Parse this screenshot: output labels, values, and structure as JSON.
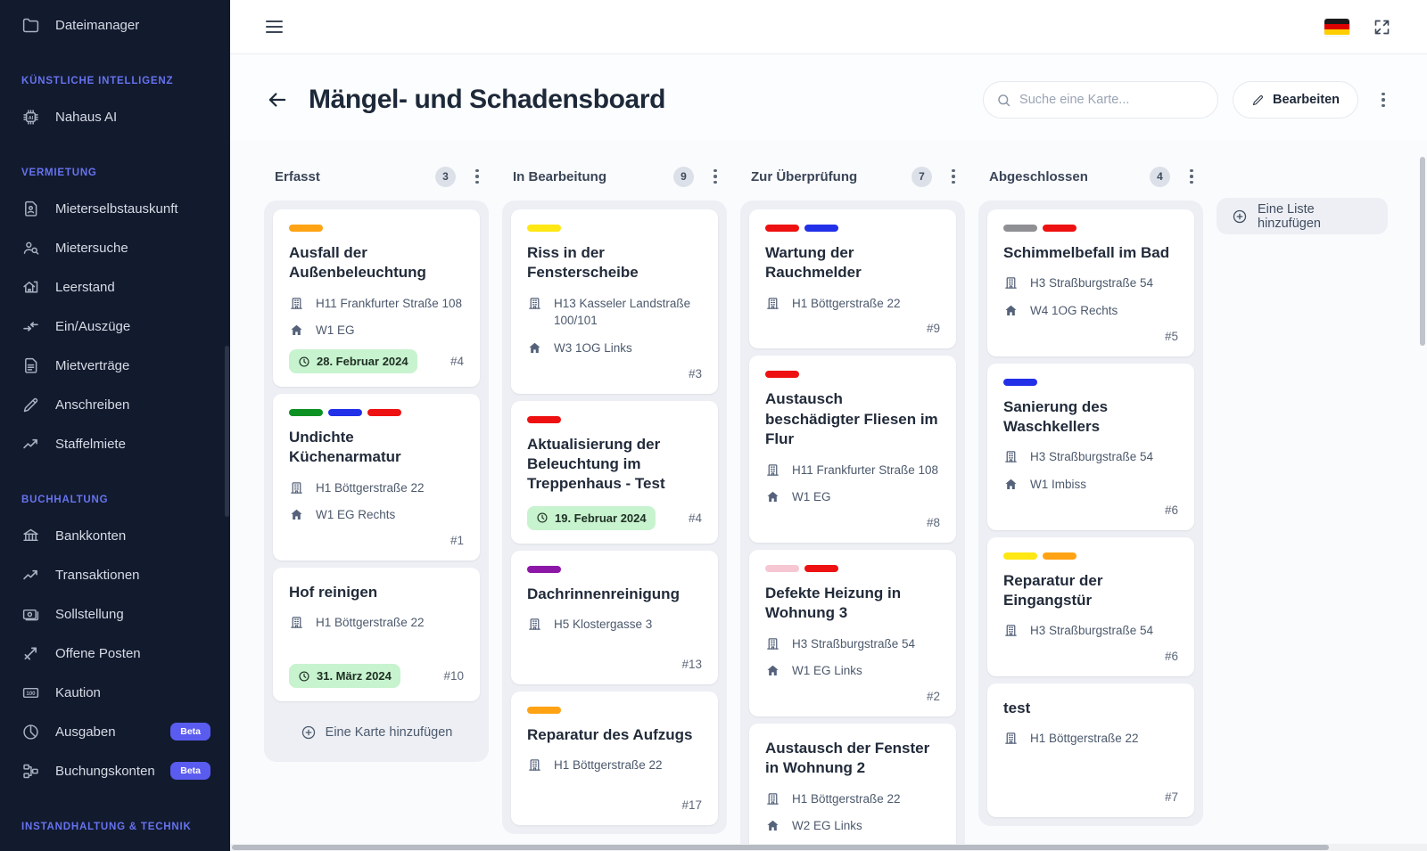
{
  "sidebar": {
    "top_item": {
      "label": "Dateimanager",
      "icon": "folder-icon"
    },
    "sections": [
      {
        "title": "KÜNSTLICHE INTELLIGENZ",
        "items": [
          {
            "label": "Nahaus AI",
            "icon": "ai-chip-icon"
          }
        ]
      },
      {
        "title": "VERMIETUNG",
        "items": [
          {
            "label": "Mieterselbstauskunft",
            "icon": "tenant-doc-icon"
          },
          {
            "label": "Mietersuche",
            "icon": "person-search-icon"
          },
          {
            "label": "Leerstand",
            "icon": "vacancy-house-icon"
          },
          {
            "label": "Ein/Auszüge",
            "icon": "move-arrows-icon"
          },
          {
            "label": "Mietverträge",
            "icon": "contract-icon"
          },
          {
            "label": "Anschreiben",
            "icon": "pen-icon"
          },
          {
            "label": "Staffelmiete",
            "icon": "trend-icon"
          }
        ]
      },
      {
        "title": "BUCHHALTUNG",
        "items": [
          {
            "label": "Bankkonten",
            "icon": "bank-icon"
          },
          {
            "label": "Transaktionen",
            "icon": "trend-icon"
          },
          {
            "label": "Sollstellung",
            "icon": "banknote-icon"
          },
          {
            "label": "Offene Posten",
            "icon": "open-items-icon"
          },
          {
            "label": "Kaution",
            "icon": "deposit-icon"
          },
          {
            "label": "Ausgaben",
            "icon": "pie-icon",
            "badge": "Beta"
          },
          {
            "label": "Buchungskonten",
            "icon": "accounts-tree-icon",
            "badge": "Beta"
          }
        ]
      },
      {
        "title": "INSTANDHALTUNG & TECHNIK",
        "items": []
      }
    ]
  },
  "header": {
    "title": "Mängel- und Schadensboard",
    "search_placeholder": "Suche eine Karte...",
    "edit_label": "Bearbeiten"
  },
  "board": {
    "add_list_label": "Eine Liste hinzufügen",
    "add_card_label": "Eine Karte hinzufügen",
    "label_colors": {
      "orange": "#FFA314",
      "yellow": "#FFE713",
      "red": "#EE1111",
      "green": "#0D9123",
      "blue": "#2230E8",
      "purple": "#8D18A8",
      "pink": "#F6C6D3",
      "gray": "#8F9094"
    },
    "columns": [
      {
        "name": "Erfasst",
        "count": "3",
        "show_add_card": true,
        "cards": [
          {
            "labels": [
              "orange"
            ],
            "title": "Ausfall der Außenbeleuchtung",
            "building": "H11 Frankfurter Straße 108",
            "unit": "W1 EG",
            "due_date": "28. Februar 2024",
            "number": "#4"
          },
          {
            "labels": [
              "green",
              "blue",
              "red"
            ],
            "title": "Undichte Küchenarmatur",
            "building": "H1 Böttgerstraße 22",
            "unit": "W1 EG Rechts",
            "number": "#1"
          },
          {
            "labels": [],
            "title": "Hof reinigen",
            "building": "H1 Böttgerstraße 22",
            "due_date": "31. März 2024",
            "number": "#10"
          }
        ]
      },
      {
        "name": "In Bearbeitung",
        "count": "9",
        "show_add_card": false,
        "cards": [
          {
            "labels": [
              "yellow"
            ],
            "title": "Riss in der Fensterscheibe",
            "building": "H13 Kasseler Landstraße 100/101",
            "unit": "W3 1OG Links",
            "number": "#3"
          },
          {
            "labels": [
              "red"
            ],
            "title": "Aktualisierung der Beleuchtung im Treppenhaus - Test",
            "due_date": "19. Februar 2024",
            "number": "#4"
          },
          {
            "labels": [
              "purple"
            ],
            "title": "Dachrinnenreinigung",
            "building": "H5 Klostergasse 3",
            "number": "#13"
          },
          {
            "labels": [
              "orange"
            ],
            "title": "Reparatur des Aufzugs",
            "building": "H1 Böttgerstraße 22",
            "number": "#17"
          }
        ]
      },
      {
        "name": "Zur Überprüfung",
        "count": "7",
        "show_add_card": false,
        "cards": [
          {
            "labels": [
              "red",
              "blue"
            ],
            "title": "Wartung der Rauchmelder",
            "building": "H1 Böttgerstraße 22",
            "number": "#9"
          },
          {
            "labels": [
              "red"
            ],
            "title": "Austausch beschädigter Fliesen im Flur",
            "building": "H11 Frankfurter Straße 108",
            "unit": "W1 EG",
            "number": "#8"
          },
          {
            "labels": [
              "pink",
              "red"
            ],
            "title": "Defekte Heizung in Wohnung 3",
            "building": "H3 Straßburgstraße 54",
            "unit": "W1 EG Links",
            "number": "#2"
          },
          {
            "labels": [],
            "title": "Austausch der Fenster in Wohnung 2",
            "building": "H1 Böttgerstraße 22",
            "unit": "W2 EG Links"
          }
        ]
      },
      {
        "name": "Abgeschlossen",
        "count": "4",
        "show_add_card": false,
        "cards": [
          {
            "labels": [
              "gray",
              "red"
            ],
            "title": "Schimmelbefall im Bad",
            "building": "H3 Straßburgstraße 54",
            "unit": "W4 1OG Rechts",
            "number": "#5"
          },
          {
            "labels": [
              "blue"
            ],
            "title": "Sanierung des Waschkellers",
            "building": "H3 Straßburgstraße 54",
            "unit": "W1 Imbiss",
            "number": "#6"
          },
          {
            "labels": [
              "yellow",
              "orange"
            ],
            "title": "Reparatur der Eingangstür",
            "building": "H3 Straßburgstraße 54",
            "number": "#6"
          },
          {
            "labels": [],
            "title": "test",
            "building": "H1 Böttgerstraße 22",
            "number": "#7"
          }
        ]
      }
    ]
  }
}
